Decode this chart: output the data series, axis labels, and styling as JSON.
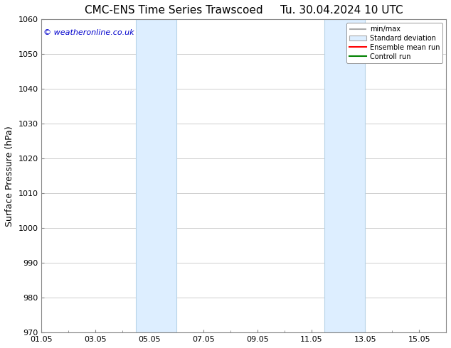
{
  "title_left": "CMC-ENS Time Series Trawscoed",
  "title_right": "Tu. 30.04.2024 10 UTC",
  "ylabel": "Surface Pressure (hPa)",
  "ylim": [
    970,
    1060
  ],
  "yticks": [
    970,
    980,
    990,
    1000,
    1010,
    1020,
    1030,
    1040,
    1050,
    1060
  ],
  "xlim": [
    0,
    15
  ],
  "xtick_labels": [
    "01.05",
    "03.05",
    "05.05",
    "07.05",
    "09.05",
    "11.05",
    "13.05",
    "15.05"
  ],
  "xtick_positions": [
    0,
    2,
    4,
    6,
    8,
    10,
    12,
    14
  ],
  "shaded_bands": [
    {
      "x_start": 3.5,
      "x_end": 5.0
    },
    {
      "x_start": 10.5,
      "x_end": 12.0
    }
  ],
  "shaded_color": "#ddeeff",
  "shaded_edge_color": "#b8d4e8",
  "copyright_text": "© weatheronline.co.uk",
  "copyright_color": "#0000cc",
  "legend_items": [
    {
      "label": "min/max",
      "color": "#aaaaaa",
      "lw": 1.5,
      "style": "minmax"
    },
    {
      "label": "Standard deviation",
      "color": "#ddeeff",
      "lw": 8,
      "style": "band"
    },
    {
      "label": "Ensemble mean run",
      "color": "#ff0000",
      "lw": 1.5,
      "style": "line"
    },
    {
      "label": "Controll run",
      "color": "#008000",
      "lw": 1.5,
      "style": "line"
    }
  ],
  "bg_color": "#ffffff",
  "grid_color": "#bbbbbb",
  "font_color": "#000000",
  "title_fontsize": 11,
  "axis_fontsize": 8,
  "ylabel_fontsize": 9,
  "copyright_fontsize": 8,
  "legend_fontsize": 7
}
